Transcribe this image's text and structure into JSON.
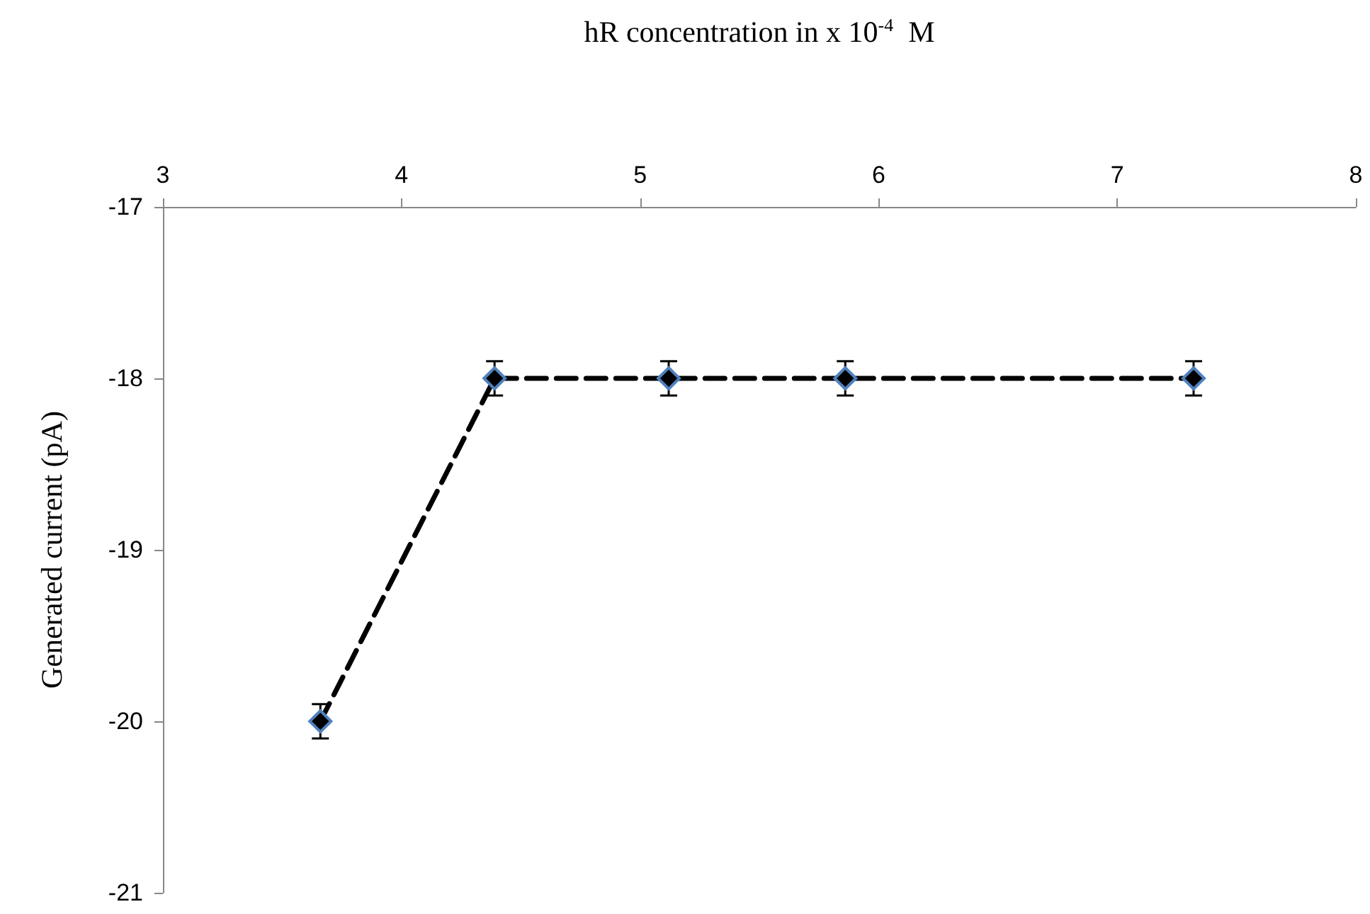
{
  "chart_data": {
    "type": "line",
    "xlabel": "hR concentration in x 10$^{-4}$  M",
    "ylabel": "Generated current (pA)",
    "x": [
      3.66,
      4.39,
      5.12,
      5.86,
      7.32
    ],
    "series": [
      {
        "color": "#000000",
        "values": [
          -20,
          -18,
          -18,
          -18,
          -18
        ],
        "errors": [
          0.1,
          0.1,
          0.1,
          0.1,
          0.1
        ]
      }
    ],
    "xlim": [
      3,
      8
    ],
    "xticks": [
      3,
      4,
      5,
      6,
      7,
      8
    ],
    "ylim": [
      -21,
      -17
    ],
    "yticks": [
      -21,
      -20,
      -19,
      -18,
      -17
    ],
    "marker": "diamond",
    "line_style": "dashed"
  }
}
